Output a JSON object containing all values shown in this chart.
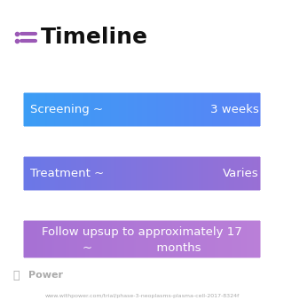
{
  "title": "Timeline",
  "title_icon_color": "#9b59b6",
  "background_color": "#ffffff",
  "box_configs": [
    {
      "left_text": "Screening ~",
      "right_text": "3 weeks",
      "color_left": "#3a9ef5",
      "color_right": "#5b82f5",
      "has_right": true
    },
    {
      "left_text": "Treatment ~",
      "right_text": "Varies",
      "color_left": "#6878e8",
      "color_right": "#9b6fd4",
      "has_right": true
    },
    {
      "left_text": "Follow upsup to approximately 17\n~                 months",
      "right_text": "",
      "color_left": "#a570d4",
      "color_right": "#bb80d8",
      "has_right": false
    }
  ],
  "footer_logo_text": "Power",
  "footer_url": "www.withpower.com/trial/phase-3-neoplasms-plasma-cell-2017-8324f",
  "footer_color": "#aaaaaa"
}
